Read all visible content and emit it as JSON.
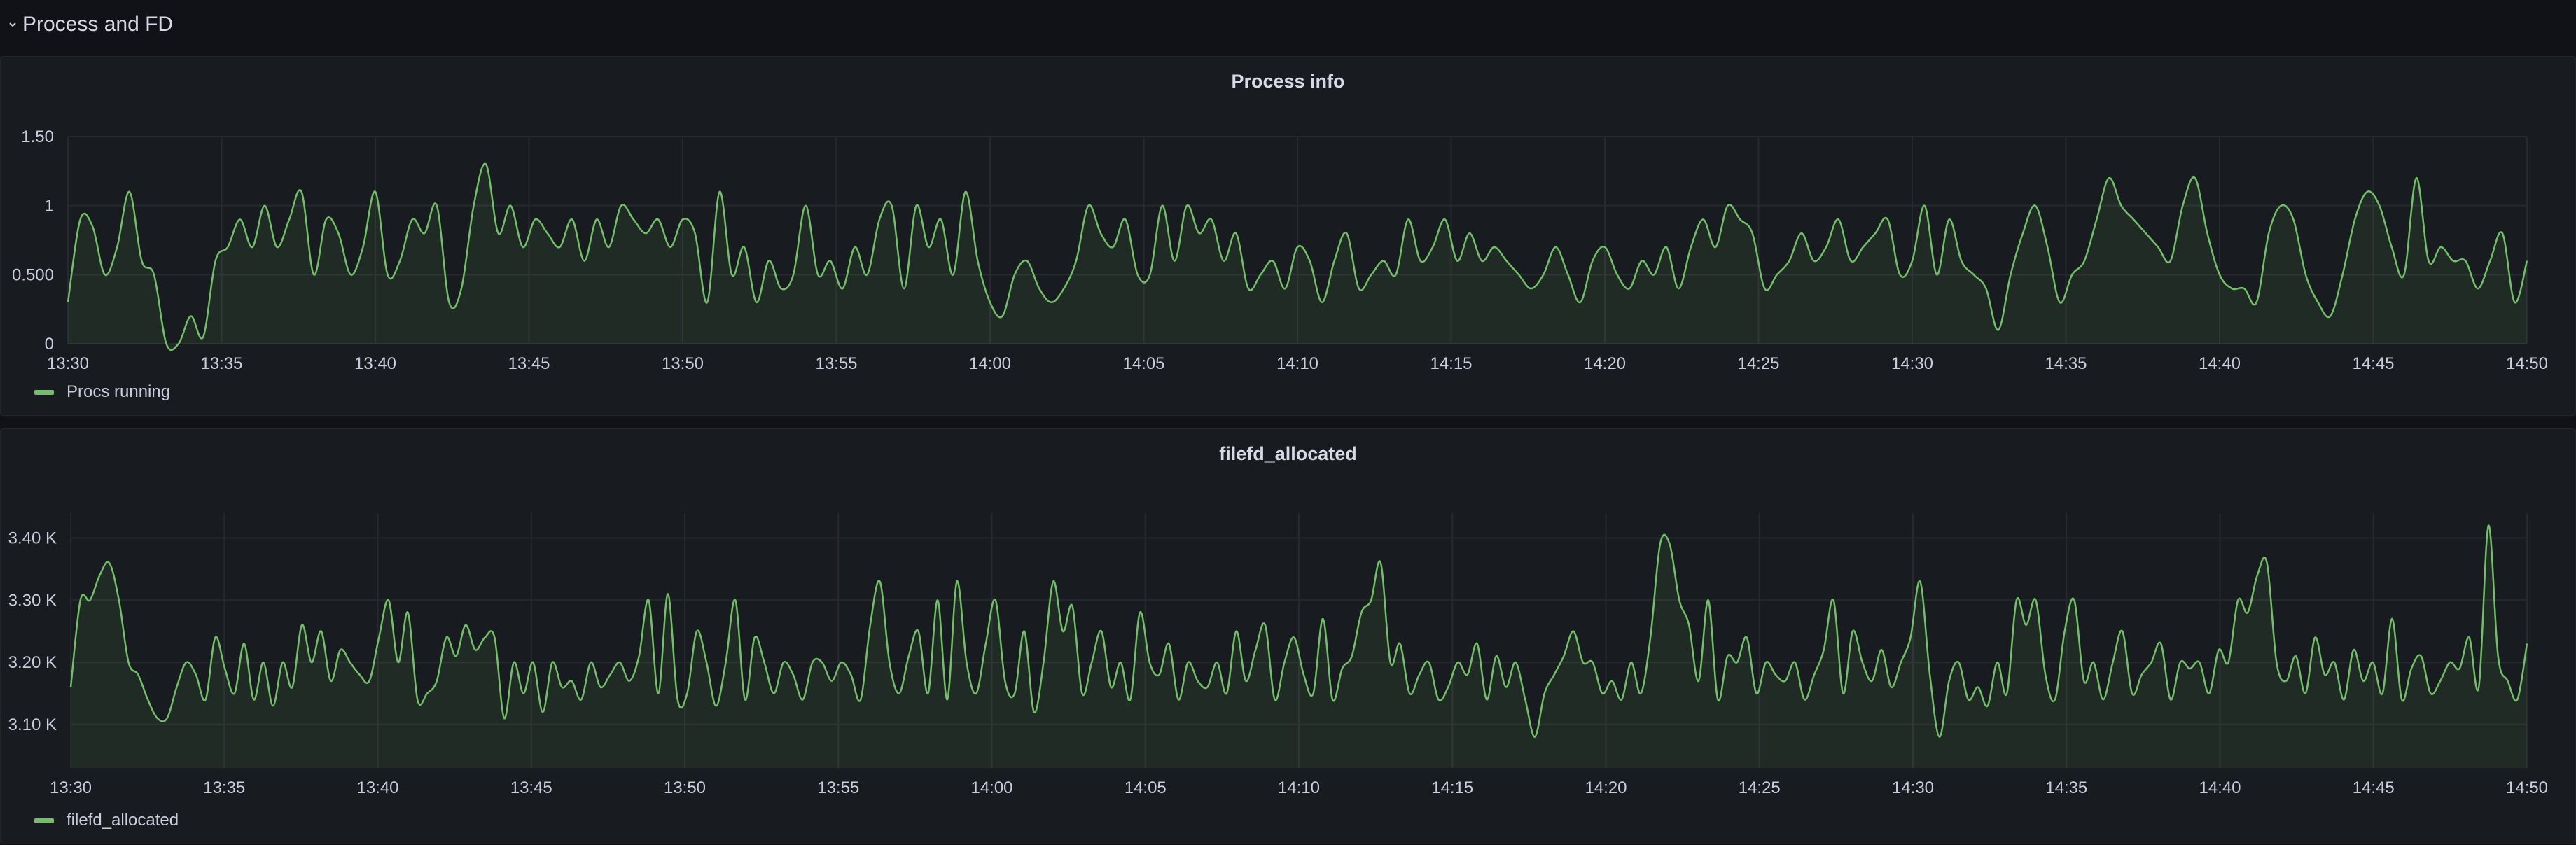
{
  "row": {
    "title": "Process and FD",
    "collapse_icon": "chevron-down-icon"
  },
  "colors": {
    "background": "#111217",
    "panel": "#181b1f",
    "series": "#73bf69",
    "grid": "#26292f"
  },
  "panels": [
    {
      "title": "Process info",
      "legend": [
        {
          "name": "Procs running",
          "color": "#73bf69"
        }
      ]
    },
    {
      "title": "filefd_allocated",
      "legend": [
        {
          "name": "filefd_allocated",
          "color": "#73bf69"
        }
      ]
    }
  ],
  "chart_data": [
    {
      "type": "area",
      "title": "Process info",
      "x_ticks": [
        "13:30",
        "13:35",
        "13:40",
        "13:45",
        "13:50",
        "13:55",
        "14:00",
        "14:05",
        "14:10",
        "14:15",
        "14:20",
        "14:25",
        "14:30",
        "14:35",
        "14:40",
        "14:45",
        "14:50"
      ],
      "y_ticks": [
        "0",
        "0.500",
        "1",
        "1.50"
      ],
      "ylim": [
        0,
        1.5
      ],
      "grid": true,
      "legend_position": "bottom-left",
      "series": [
        {
          "name": "Procs running",
          "x_range": [
            "13:30",
            "14:50"
          ],
          "values": [
            0.3,
            0.9,
            0.85,
            0.5,
            0.7,
            1.1,
            0.6,
            0.5,
            0.0,
            0.0,
            0.2,
            0.05,
            0.6,
            0.7,
            0.9,
            0.7,
            1.0,
            0.7,
            0.9,
            1.1,
            0.5,
            0.9,
            0.8,
            0.5,
            0.7,
            1.1,
            0.5,
            0.6,
            0.9,
            0.8,
            1.0,
            0.3,
            0.4,
            1.0,
            1.3,
            0.8,
            1.0,
            0.7,
            0.9,
            0.8,
            0.7,
            0.9,
            0.6,
            0.9,
            0.7,
            1.0,
            0.9,
            0.8,
            0.9,
            0.7,
            0.9,
            0.8,
            0.3,
            1.1,
            0.5,
            0.7,
            0.3,
            0.6,
            0.4,
            0.5,
            1.0,
            0.5,
            0.6,
            0.4,
            0.7,
            0.5,
            0.9,
            1.0,
            0.4,
            1.0,
            0.7,
            0.9,
            0.5,
            1.1,
            0.6,
            0.3,
            0.2,
            0.5,
            0.6,
            0.4,
            0.3,
            0.4,
            0.6,
            1.0,
            0.8,
            0.7,
            0.9,
            0.5,
            0.5,
            1.0,
            0.6,
            1.0,
            0.8,
            0.9,
            0.6,
            0.8,
            0.4,
            0.5,
            0.6,
            0.4,
            0.7,
            0.6,
            0.3,
            0.6,
            0.8,
            0.4,
            0.5,
            0.6,
            0.5,
            0.9,
            0.6,
            0.7,
            0.9,
            0.6,
            0.8,
            0.6,
            0.7,
            0.6,
            0.5,
            0.4,
            0.5,
            0.7,
            0.5,
            0.3,
            0.6,
            0.7,
            0.5,
            0.4,
            0.6,
            0.5,
            0.7,
            0.4,
            0.7,
            0.9,
            0.7,
            1.0,
            0.9,
            0.8,
            0.4,
            0.5,
            0.6,
            0.8,
            0.6,
            0.7,
            0.9,
            0.6,
            0.7,
            0.8,
            0.9,
            0.5,
            0.6,
            1.0,
            0.5,
            0.9,
            0.6,
            0.5,
            0.4,
            0.1,
            0.5,
            0.8,
            1.0,
            0.7,
            0.3,
            0.5,
            0.6,
            0.9,
            1.2,
            1.0,
            0.9,
            0.8,
            0.7,
            0.6,
            1.0,
            1.2,
            0.8,
            0.5,
            0.4,
            0.4,
            0.3,
            0.8,
            1.0,
            0.9,
            0.5,
            0.3,
            0.2,
            0.5,
            0.9,
            1.1,
            1.0,
            0.7,
            0.5,
            1.2,
            0.6,
            0.7,
            0.6,
            0.6,
            0.4,
            0.6,
            0.8,
            0.3,
            0.6
          ]
        }
      ]
    },
    {
      "type": "area",
      "title": "filefd_allocated",
      "x_ticks": [
        "13:30",
        "13:35",
        "13:40",
        "13:45",
        "13:50",
        "13:55",
        "14:00",
        "14:05",
        "14:10",
        "14:15",
        "14:20",
        "14:25",
        "14:30",
        "14:35",
        "14:40",
        "14:45",
        "14:50"
      ],
      "y_ticks": [
        "3.10 K",
        "3.20 K",
        "3.30 K",
        "3.40 K"
      ],
      "ylim": [
        3030,
        3440
      ],
      "grid": true,
      "legend_position": "bottom-left",
      "series": [
        {
          "name": "filefd_allocated",
          "x_range": [
            "13:30",
            "14:50"
          ],
          "values": [
            3160,
            3300,
            3300,
            3340,
            3360,
            3300,
            3200,
            3180,
            3140,
            3110,
            3110,
            3160,
            3200,
            3180,
            3140,
            3240,
            3190,
            3150,
            3230,
            3140,
            3200,
            3130,
            3200,
            3160,
            3260,
            3200,
            3250,
            3170,
            3220,
            3200,
            3180,
            3170,
            3240,
            3300,
            3200,
            3280,
            3140,
            3150,
            3170,
            3240,
            3210,
            3260,
            3220,
            3240,
            3240,
            3110,
            3200,
            3150,
            3200,
            3120,
            3200,
            3160,
            3170,
            3140,
            3200,
            3160,
            3180,
            3200,
            3170,
            3210,
            3300,
            3150,
            3310,
            3140,
            3150,
            3250,
            3200,
            3130,
            3200,
            3300,
            3140,
            3240,
            3200,
            3150,
            3200,
            3180,
            3140,
            3200,
            3200,
            3170,
            3200,
            3180,
            3140,
            3260,
            3330,
            3200,
            3150,
            3210,
            3250,
            3150,
            3300,
            3140,
            3330,
            3200,
            3150,
            3230,
            3300,
            3170,
            3150,
            3250,
            3120,
            3200,
            3330,
            3250,
            3290,
            3150,
            3200,
            3250,
            3160,
            3200,
            3140,
            3280,
            3200,
            3180,
            3230,
            3140,
            3200,
            3170,
            3160,
            3200,
            3150,
            3250,
            3170,
            3220,
            3260,
            3140,
            3200,
            3240,
            3180,
            3150,
            3270,
            3140,
            3190,
            3210,
            3280,
            3300,
            3360,
            3200,
            3230,
            3150,
            3180,
            3200,
            3140,
            3160,
            3200,
            3180,
            3230,
            3140,
            3210,
            3160,
            3200,
            3140,
            3080,
            3150,
            3180,
            3210,
            3250,
            3200,
            3200,
            3150,
            3170,
            3140,
            3200,
            3150,
            3240,
            3390,
            3390,
            3300,
            3260,
            3170,
            3300,
            3140,
            3210,
            3200,
            3240,
            3150,
            3200,
            3180,
            3170,
            3200,
            3140,
            3180,
            3220,
            3300,
            3150,
            3250,
            3200,
            3170,
            3220,
            3160,
            3200,
            3240,
            3330,
            3180,
            3080,
            3170,
            3200,
            3140,
            3160,
            3130,
            3200,
            3150,
            3300,
            3260,
            3300,
            3180,
            3140,
            3250,
            3300,
            3170,
            3200,
            3140,
            3200,
            3250,
            3150,
            3180,
            3200,
            3230,
            3140,
            3200,
            3190,
            3200,
            3150,
            3220,
            3200,
            3300,
            3280,
            3340,
            3360,
            3200,
            3170,
            3210,
            3150,
            3240,
            3180,
            3200,
            3140,
            3220,
            3170,
            3200,
            3150,
            3270,
            3140,
            3190,
            3210,
            3150,
            3170,
            3200,
            3190,
            3240,
            3160,
            3420,
            3210,
            3170,
            3140,
            3230
          ]
        }
      ]
    }
  ]
}
